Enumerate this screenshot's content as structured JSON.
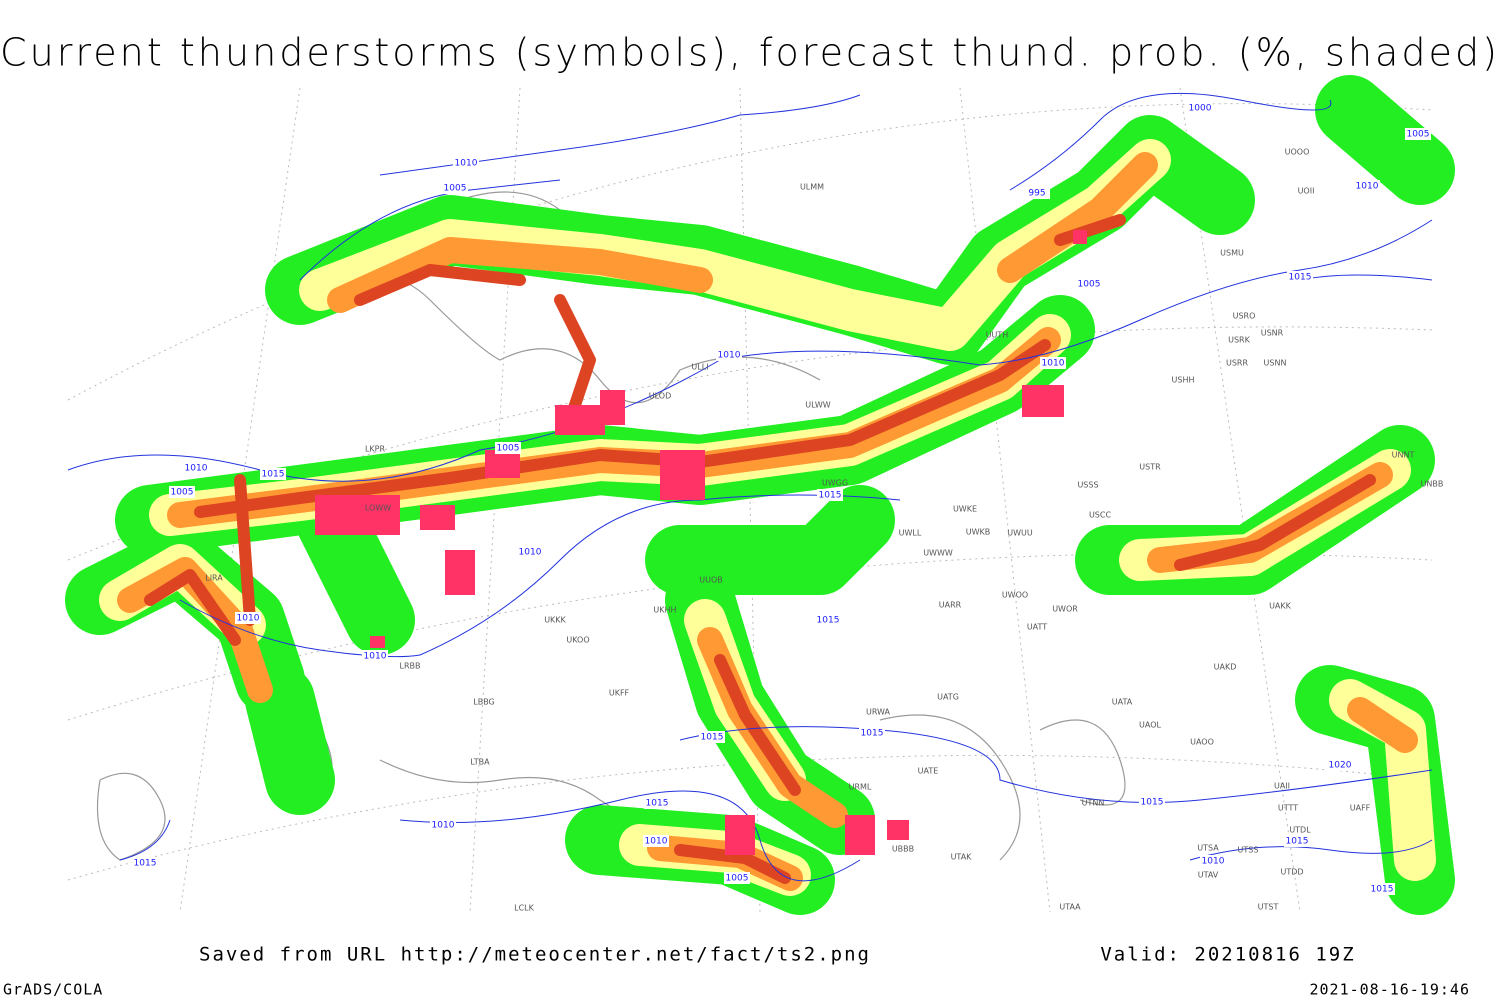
{
  "title": "Current thunderstorms (symbols), forecast thund. prob. (%, shaded)",
  "isobar_labels": [
    1010,
    1005,
    995,
    1000,
    1005,
    1010,
    1015,
    1005,
    1010,
    1010,
    1005,
    1010,
    1015,
    1005,
    1010,
    1015,
    1010,
    1010,
    1015,
    1015,
    1015,
    1015,
    1010,
    1010,
    1015,
    1005,
    1015,
    1020,
    1010,
    1015,
    1015
  ],
  "stations": [
    "ULMM",
    "UOOO",
    "UOII",
    "USMU",
    "ULLI",
    "ULOD",
    "ULWW",
    "USRO",
    "USRK",
    "USNR",
    "USRR",
    "USNN",
    "USHH",
    "UUTH",
    "USSS",
    "USTR",
    "USCC",
    "UWKE",
    "UWKB",
    "UWUU",
    "UWGG",
    "UWWW",
    "UWLL",
    "UUOB",
    "UKKK",
    "UKOO",
    "UKFF",
    "UKHH",
    "UARR",
    "UWOO",
    "UWOR",
    "UATT",
    "UAKD",
    "UAKK",
    "UATG",
    "UATA",
    "UAOL",
    "UAOO",
    "UATE",
    "URWA",
    "URML",
    "UBBB",
    "UTAK",
    "UTNN",
    "UTSA",
    "UTSS",
    "UTAV",
    "UTAA",
    "UTST",
    "UTDD",
    "UTTT",
    "UAII",
    "UTDL",
    "UAFF",
    "LBBG",
    "LTBA",
    "LCLK",
    "LRBB",
    "LKPR",
    "LOWW",
    "LIRA",
    "UNNT",
    "UNBB"
  ],
  "footer": {
    "source": "Saved from URL http://meteocenter.net/fact/ts2.png",
    "valid": "Valid: 20210816 19Z",
    "software": "GrADS/COLA",
    "timestamp": "2021-08-16-19:46"
  }
}
